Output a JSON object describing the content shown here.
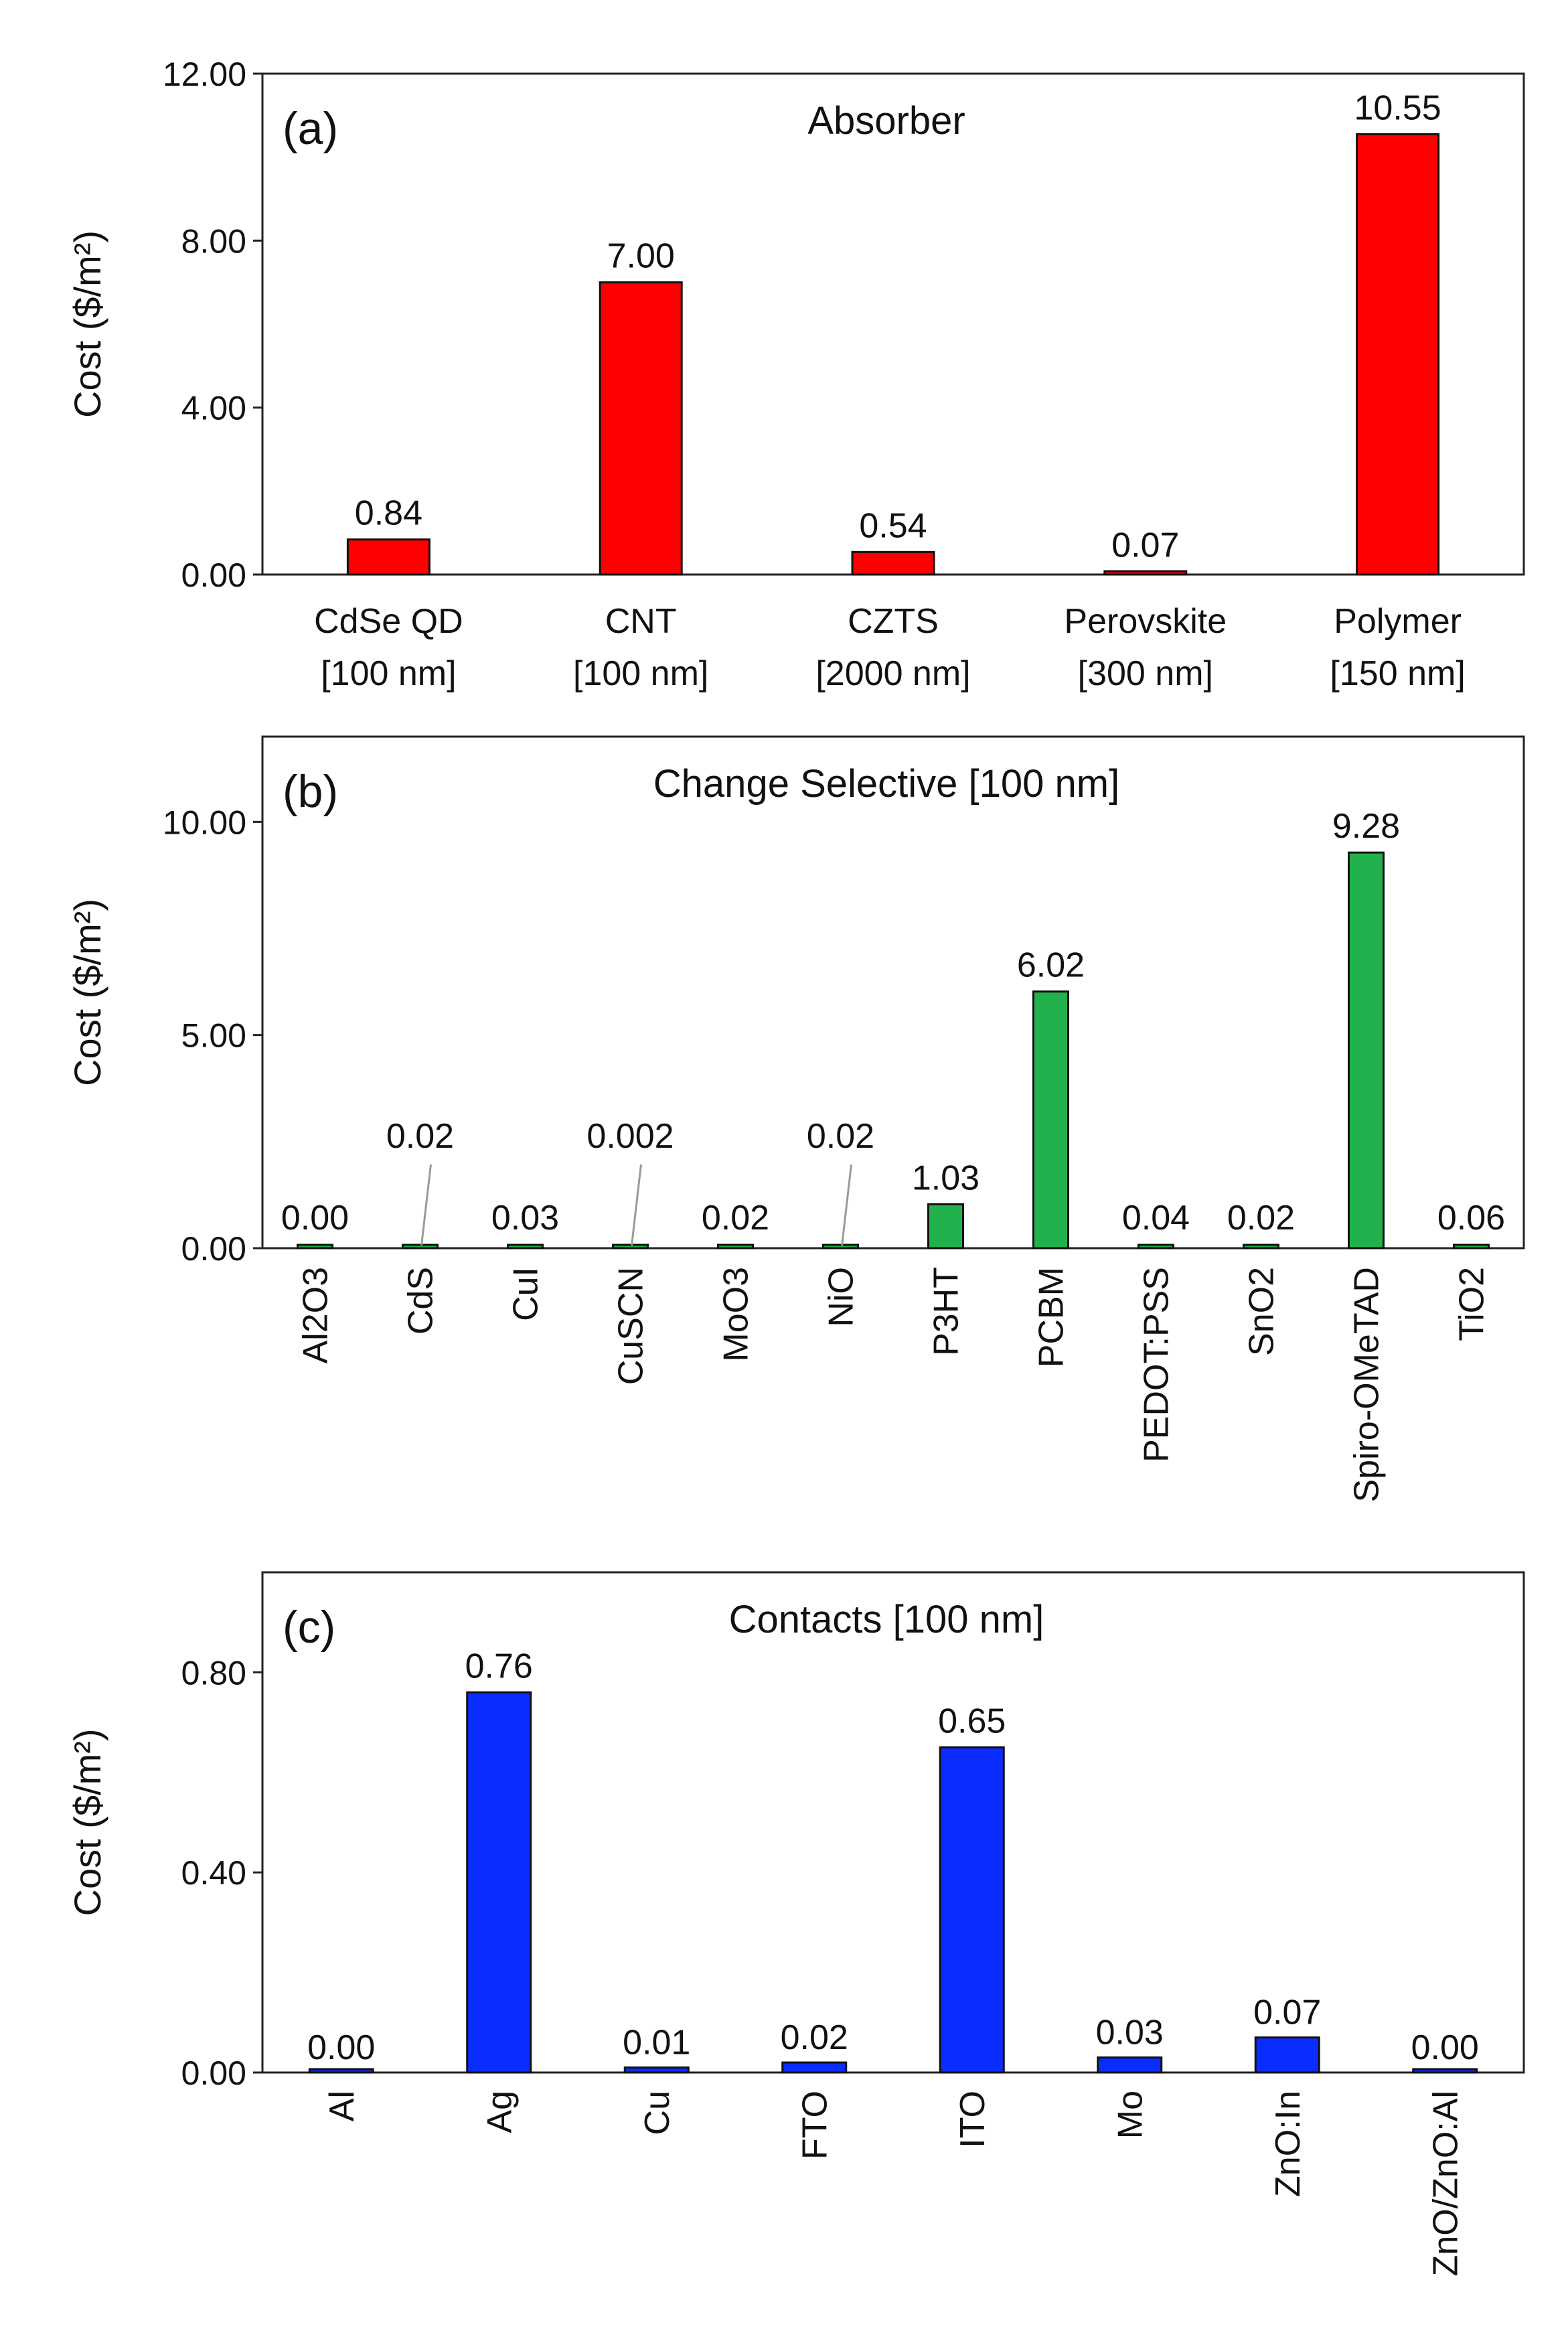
{
  "panels": [
    {
      "id": "a",
      "letter": "(a)",
      "title": "Absorber",
      "ylabel": "Cost ($/m²)",
      "bar_color": "#ff0000",
      "chart_data": {
        "type": "bar",
        "ylim": [
          0,
          12
        ],
        "yticks": [
          "0.00",
          "4.00",
          "8.00",
          "12.00"
        ],
        "yticks_values": [
          0,
          4,
          8,
          12
        ],
        "categories": [
          [
            "CdSe QD",
            "[100 nm]"
          ],
          [
            "CNT",
            "[100 nm]"
          ],
          [
            "CZTS",
            "[2000 nm]"
          ],
          [
            "Perovskite",
            "[300 nm]"
          ],
          [
            "Polymer",
            "[150 nm]"
          ]
        ],
        "values": [
          0.84,
          7.0,
          0.54,
          0.07,
          10.55
        ],
        "labels": [
          "0.84",
          "7.00",
          "0.54",
          "0.07",
          "10.55"
        ]
      }
    },
    {
      "id": "b",
      "letter": "(b)",
      "title": "Change Selective [100 nm]",
      "ylabel": "Cost ($/m²)",
      "bar_color": "#22b14c",
      "chart_data": {
        "type": "bar",
        "ylim": [
          0,
          12
        ],
        "yticks": [
          "0.00",
          "5.00",
          "10.00"
        ],
        "yticks_values": [
          0,
          5,
          10
        ],
        "categories": [
          "Al2O3",
          "CdS",
          "CuI",
          "CuSCN",
          "MoO3",
          "NiO",
          "P3HT",
          "PCBM",
          "PEDOT:PSS",
          "SnO2",
          "Spiro-OMeTAD",
          "TiO2"
        ],
        "values": [
          0.0,
          0.02,
          0.03,
          0.002,
          0.02,
          0.02,
          1.03,
          6.02,
          0.04,
          0.02,
          9.28,
          0.06
        ],
        "labels": [
          "0.00",
          "0.02",
          "0.03",
          "0.002",
          "0.02",
          "0.02",
          "1.03",
          "6.02",
          "0.04",
          "0.02",
          "9.28",
          "0.06"
        ],
        "raised_labels": [
          "CdS",
          "CuSCN",
          "NiO"
        ]
      }
    },
    {
      "id": "c",
      "letter": "(c)",
      "title": "Contacts [100 nm]",
      "ylabel": "Cost ($/m²)",
      "bar_color": "#0a2cff",
      "chart_data": {
        "type": "bar",
        "ylim": [
          0,
          1.0
        ],
        "yticks": [
          "0.00",
          "0.40",
          "0.80"
        ],
        "yticks_values": [
          0,
          0.4,
          0.8
        ],
        "categories": [
          "Al",
          "Ag",
          "Cu",
          "FTO",
          "ITO",
          "Mo",
          "ZnO:In",
          "ZnO/ZnO:Al"
        ],
        "values": [
          0.0,
          0.76,
          0.01,
          0.02,
          0.65,
          0.03,
          0.07,
          0.0
        ],
        "labels": [
          "0.00",
          "0.76",
          "0.01",
          "0.02",
          "0.65",
          "0.03",
          "0.07",
          "0.00"
        ]
      }
    }
  ]
}
